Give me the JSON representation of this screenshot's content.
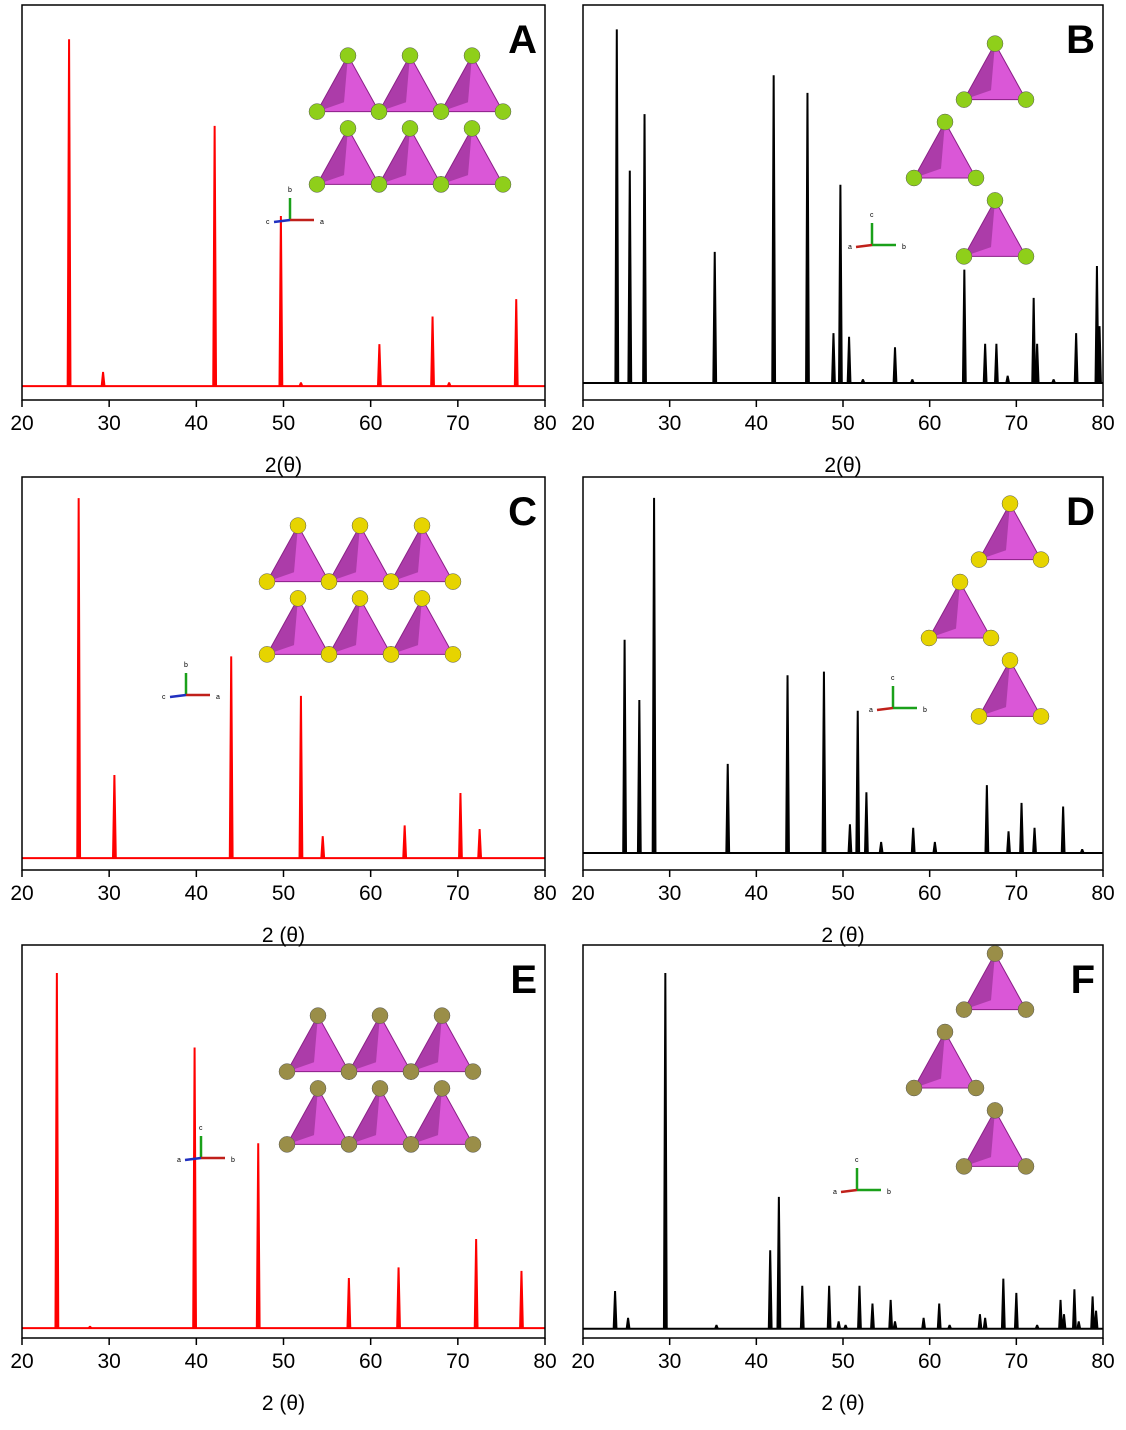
{
  "chart_data": [
    {
      "type": "spectrum",
      "label": "A",
      "xlabel": "2(θ)",
      "color": "#ff0000",
      "xlim": [
        20,
        80
      ],
      "xticks": [
        20,
        30,
        40,
        50,
        60,
        70,
        80
      ],
      "ylim": [
        -4,
        110
      ],
      "x": [
        25.4,
        29.3,
        42.1,
        49.7,
        52,
        61,
        67.1,
        69,
        76.7
      ],
      "values": [
        100,
        4,
        75,
        49,
        1,
        12,
        20,
        1,
        25
      ],
      "inset_axes": [
        "b",
        "c",
        "a"
      ]
    },
    {
      "type": "spectrum",
      "label": "B",
      "xlabel": "2(θ)",
      "color": "#000000",
      "xlim": [
        20,
        80
      ],
      "xticks": [
        20,
        30,
        40,
        50,
        60,
        70,
        80
      ],
      "ylim": [
        -4.8,
        107
      ],
      "x": [
        23.9,
        25.4,
        27.1,
        35.2,
        42,
        45.9,
        48.9,
        49.7,
        50.7,
        52.3,
        56,
        58,
        64,
        66.4,
        67.7,
        69,
        72,
        72.4,
        74.3,
        76.9,
        79.3,
        79.6
      ],
      "values": [
        100,
        60,
        76,
        37,
        87,
        82,
        14,
        56,
        13,
        1,
        10,
        1,
        32,
        11,
        11,
        2,
        24,
        11,
        1,
        14,
        33,
        16
      ],
      "inset_axes": [
        "c",
        "a",
        "b"
      ]
    },
    {
      "type": "spectrum",
      "label": "C",
      "xlabel": "2 (θ)",
      "color": "#ff0000",
      "xlim": [
        20,
        80
      ],
      "xticks": [
        20,
        30,
        40,
        50,
        60,
        70,
        80
      ],
      "ylim": [
        -3.3,
        106
      ],
      "x": [
        26.5,
        30.6,
        44,
        52,
        54.5,
        63.9,
        70.3,
        72.5
      ],
      "values": [
        100,
        23,
        56,
        45,
        6,
        9,
        18,
        8
      ],
      "inset_axes": [
        "b",
        "c",
        "a"
      ]
    },
    {
      "type": "spectrum",
      "label": "D",
      "xlabel": "2 (θ)",
      "color": "#000000",
      "xlim": [
        20,
        80
      ],
      "xticks": [
        20,
        30,
        40,
        50,
        60,
        70,
        80
      ],
      "ylim": [
        -4.8,
        106
      ],
      "x": [
        24.8,
        26.5,
        28.2,
        36.7,
        43.6,
        47.8,
        50.8,
        51.7,
        52.7,
        54.4,
        58.1,
        60.6,
        66.6,
        69.1,
        70.6,
        72.1,
        75.4,
        77.6
      ],
      "values": [
        60,
        43,
        100,
        25,
        50,
        51,
        8,
        40,
        17,
        3,
        7,
        3,
        19,
        6,
        14,
        7,
        13,
        1
      ],
      "inset_axes": [
        "c",
        "a",
        "b"
      ]
    },
    {
      "type": "spectrum",
      "label": "E",
      "xlabel": "2 (θ)",
      "color": "#ff0000",
      "xlim": [
        20,
        80
      ],
      "xticks": [
        20,
        30,
        40,
        50,
        60,
        70,
        80
      ],
      "ylim": [
        -2.8,
        108
      ],
      "x": [
        24,
        27.8,
        39.8,
        47.1,
        57.5,
        63.2,
        72.1,
        77.3
      ],
      "values": [
        100,
        0.5,
        79,
        52,
        14,
        17,
        25,
        16
      ],
      "inset_axes": [
        "c",
        "a",
        "b"
      ]
    },
    {
      "type": "spectrum",
      "label": "F",
      "xlabel": "2 (θ)",
      "color": "#000000",
      "xlim": [
        20,
        80
      ],
      "xticks": [
        20,
        30,
        40,
        50,
        60,
        70,
        80
      ],
      "ylim": [
        -2.6,
        108
      ],
      "x": [
        23.7,
        25.2,
        29.5,
        35.4,
        41.6,
        42.6,
        45.3,
        48.4,
        49.5,
        50.3,
        51.9,
        53.4,
        55.5,
        56,
        59.3,
        61.1,
        62.3,
        65.8,
        66.4,
        68.5,
        70,
        72.4,
        75.1,
        75.5,
        76.7,
        77.2,
        78.8,
        79.2
      ],
      "values": [
        10.5,
        3,
        100,
        1,
        22,
        37,
        12,
        12,
        2,
        1,
        12,
        7,
        8,
        2,
        3,
        7,
        1,
        4,
        3,
        14,
        10,
        1,
        8,
        4,
        11,
        2,
        9,
        5
      ],
      "inset_axes": [
        "c",
        "a",
        "b"
      ]
    }
  ]
}
